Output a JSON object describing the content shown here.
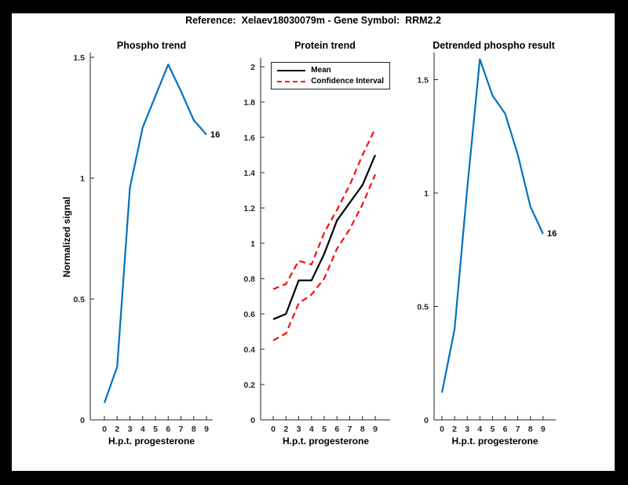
{
  "figure_title": "Reference:  Xelaev18030079m - Gene Symbol:  RRM2.2",
  "colors": {
    "line_blue": "#0072BD",
    "ci_red": "#F50F0F",
    "mean_black": "#000000",
    "axis": "#262626",
    "figure_bg": "#FFFFFF",
    "frame_bg": "#000000"
  },
  "chart_data": [
    {
      "type": "line",
      "title": "Phospho trend",
      "xlabel": "H.p.t. progesterone",
      "ylabel": "Normalized signal",
      "x_tick_labels": [
        "0",
        "2",
        "3",
        "4",
        "5",
        "6",
        "7",
        "8",
        "9"
      ],
      "y_ticks": [
        0,
        0.5,
        1,
        1.5
      ],
      "ylim": [
        0,
        1.52
      ],
      "grid": false,
      "end_annotation": "16",
      "series": [
        {
          "name": "phospho signal",
          "color": "#0072BD",
          "dash": false,
          "values": [
            0.07,
            0.22,
            0.96,
            1.21,
            1.34,
            1.47,
            1.36,
            1.24,
            1.18
          ]
        }
      ]
    },
    {
      "type": "line",
      "title": "Protein trend",
      "xlabel": "H.p.t. progesterone",
      "ylabel": "",
      "x_tick_labels": [
        "0",
        "2",
        "3",
        "4",
        "5",
        "6",
        "7",
        "8",
        "9"
      ],
      "y_ticks": [
        0,
        0.2,
        0.4,
        0.6,
        0.8,
        1,
        1.2,
        1.4,
        1.6,
        1.8,
        2
      ],
      "ylim": [
        0,
        2.05
      ],
      "grid": false,
      "end_annotation": null,
      "legend": {
        "position": "northeast",
        "entries": [
          {
            "label": "Mean",
            "color": "#000000",
            "dash": false
          },
          {
            "label": "Confidence Interval",
            "color": "#F50F0F",
            "dash": true
          }
        ]
      },
      "series": [
        {
          "name": "mean",
          "color": "#000000",
          "dash": false,
          "values": [
            0.57,
            0.6,
            0.79,
            0.79,
            0.94,
            1.13,
            1.23,
            1.33,
            1.5
          ]
        },
        {
          "name": "confidence interval upper",
          "color": "#F50F0F",
          "dash": true,
          "values": [
            0.74,
            0.77,
            0.9,
            0.88,
            1.06,
            1.19,
            1.33,
            1.5,
            1.65
          ]
        },
        {
          "name": "confidence interval lower",
          "color": "#F50F0F",
          "dash": true,
          "values": [
            0.45,
            0.49,
            0.66,
            0.71,
            0.8,
            0.97,
            1.08,
            1.22,
            1.39
          ]
        }
      ]
    },
    {
      "type": "line",
      "title": "Detrended phospho result",
      "xlabel": "H.p.t. progesterone",
      "ylabel": "",
      "x_tick_labels": [
        "0",
        "2",
        "3",
        "4",
        "5",
        "6",
        "7",
        "8",
        "9"
      ],
      "y_ticks": [
        0,
        0.5,
        1,
        1.5
      ],
      "ylim": [
        0,
        1.62
      ],
      "grid": false,
      "end_annotation": "16",
      "series": [
        {
          "name": "detrended phospho signal",
          "color": "#0072BD",
          "dash": false,
          "values": [
            0.12,
            0.4,
            1.02,
            1.59,
            1.43,
            1.35,
            1.17,
            0.94,
            0.82
          ]
        }
      ]
    }
  ]
}
